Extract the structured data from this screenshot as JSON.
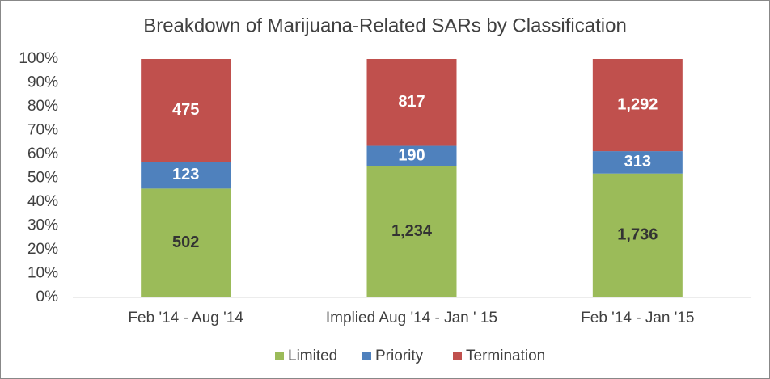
{
  "chart_data": {
    "type": "bar",
    "stacking": "percent",
    "title": "Breakdown of Marijuana-Related SARs by Classification",
    "categories": [
      "Feb '14 - Aug '14",
      "Implied Aug '14 - Jan ' 15",
      "Feb '14 - Jan '15"
    ],
    "series": [
      {
        "name": "Limited",
        "color": "#9bbb59",
        "label_color": "#333333",
        "values": [
          502,
          1234,
          1736
        ],
        "value_labels": [
          "502",
          "1,234",
          "1,736"
        ]
      },
      {
        "name": "Priority",
        "color": "#4f81bd",
        "label_color": "#ffffff",
        "values": [
          123,
          190,
          313
        ],
        "value_labels": [
          "123",
          "190",
          "313"
        ]
      },
      {
        "name": "Termination",
        "color": "#c0504d",
        "label_color": "#ffffff",
        "values": [
          475,
          817,
          1292
        ],
        "value_labels": [
          "475",
          "817",
          "1,292"
        ]
      }
    ],
    "ylim": [
      0,
      100
    ],
    "yticks": [
      {
        "value": 0,
        "label": "0%"
      },
      {
        "value": 10,
        "label": "10%"
      },
      {
        "value": 20,
        "label": "20%"
      },
      {
        "value": 30,
        "label": "30%"
      },
      {
        "value": 40,
        "label": "40%"
      },
      {
        "value": 50,
        "label": "50%"
      },
      {
        "value": 60,
        "label": "60%"
      },
      {
        "value": 70,
        "label": "70%"
      },
      {
        "value": 80,
        "label": "80%"
      },
      {
        "value": 90,
        "label": "90%"
      },
      {
        "value": 100,
        "label": "100%"
      }
    ],
    "grid": false,
    "legend": "bottom"
  }
}
